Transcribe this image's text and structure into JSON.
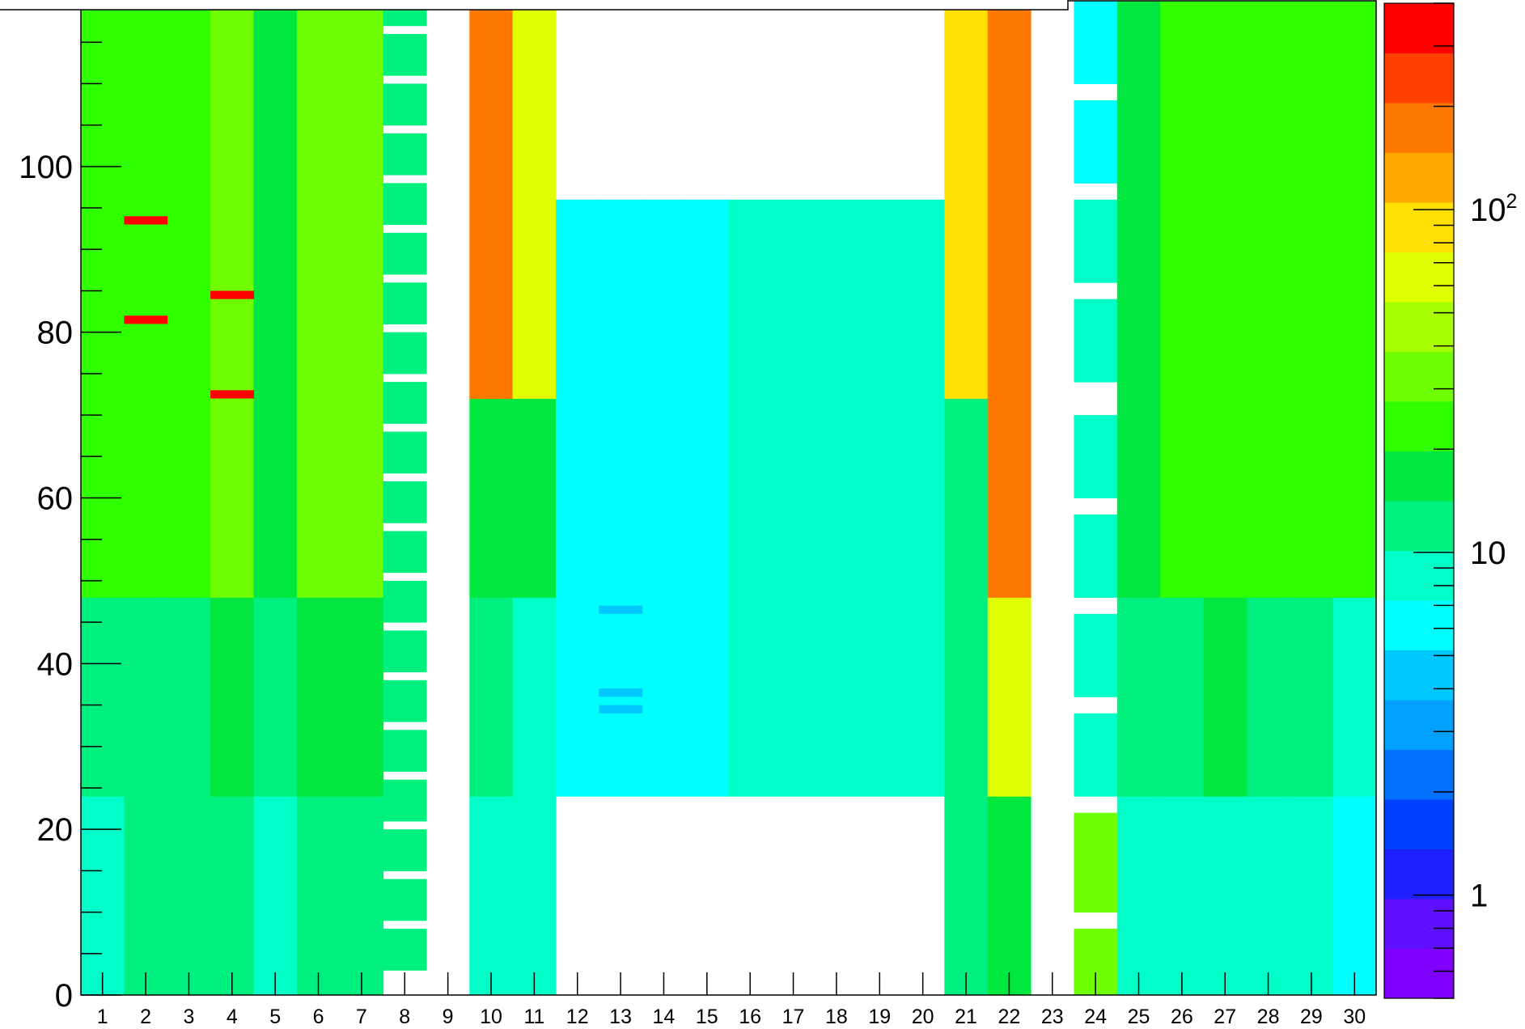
{
  "chart_data": {
    "type": "heatmap",
    "title": "",
    "xlabel": "",
    "ylabel": "",
    "x_categories": [
      "1",
      "2",
      "3",
      "4",
      "5",
      "6",
      "7",
      "8",
      "9",
      "10",
      "11",
      "12",
      "13",
      "14",
      "15",
      "16",
      "17",
      "18",
      "19",
      "20",
      "21",
      "22",
      "23",
      "24",
      "25",
      "26",
      "27",
      "28",
      "29",
      "30"
    ],
    "y_range": [
      0,
      120
    ],
    "y_ticks": [
      "0",
      "20",
      "40",
      "60",
      "80",
      "100"
    ],
    "z_scale": "log",
    "z_range": [
      0.5,
      400
    ],
    "colorbar_ticks": [
      {
        "label": "1",
        "value": 1
      },
      {
        "label": "10",
        "value": 10
      },
      {
        "label": "10",
        "sup": "2",
        "value": 100
      }
    ],
    "colorbar_colors": [
      "#8000ff",
      "#6010ff",
      "#2020ff",
      "#0040ff",
      "#0070ff",
      "#00a0ff",
      "#00c8ff",
      "#00ffff",
      "#00ffc8",
      "#00f080",
      "#00e840",
      "#30ff00",
      "#70ff00",
      "#a8ff00",
      "#e0ff00",
      "#ffe000",
      "#ffa800",
      "#ff7800",
      "#ff4000",
      "#ff0000"
    ],
    "band_defaults": {
      "1": [
        {
          "y0": 0,
          "y1": 24,
          "z": 10
        },
        {
          "y0": 24,
          "y1": 48,
          "z": 13
        },
        {
          "y0": 48,
          "y1": 120,
          "z": 20
        }
      ],
      "2": [
        {
          "y0": 0,
          "y1": 24,
          "z": 11
        },
        {
          "y0": 24,
          "y1": 48,
          "z": 13
        },
        {
          "y0": 48,
          "y1": 120,
          "z": 27
        }
      ],
      "3": [
        {
          "y0": 0,
          "y1": 24,
          "z": 11
        },
        {
          "y0": 24,
          "y1": 48,
          "z": 14
        },
        {
          "y0": 48,
          "y1": 120,
          "z": 22
        }
      ],
      "4": [
        {
          "y0": 0,
          "y1": 24,
          "z": 12
        },
        {
          "y0": 24,
          "y1": 48,
          "z": 15
        },
        {
          "y0": 48,
          "y1": 120,
          "z": 30
        }
      ],
      "5": [
        {
          "y0": 0,
          "y1": 24,
          "z": 9
        },
        {
          "y0": 24,
          "y1": 48,
          "z": 12
        },
        {
          "y0": 48,
          "y1": 120,
          "z": 18
        }
      ],
      "6": [
        {
          "y0": 0,
          "y1": 24,
          "z": 13
        },
        {
          "y0": 24,
          "y1": 48,
          "z": 16
        },
        {
          "y0": 48,
          "y1": 120,
          "z": 35
        }
      ],
      "7": [
        {
          "y0": 0,
          "y1": 24,
          "z": 12
        },
        {
          "y0": 24,
          "y1": 48,
          "z": 15
        },
        {
          "y0": 48,
          "y1": 120,
          "z": 30
        }
      ],
      "8": [
        {
          "y0": 3,
          "y1": 120,
          "z": 12
        }
      ],
      "9": [],
      "10": [
        {
          "y0": 0,
          "y1": 24,
          "z": 8
        },
        {
          "y0": 24,
          "y1": 48,
          "z": 11
        },
        {
          "y0": 48,
          "y1": 72,
          "z": 17
        },
        {
          "y0": 72,
          "y1": 120,
          "z": 160
        }
      ],
      "11": [
        {
          "y0": 0,
          "y1": 24,
          "z": 9
        },
        {
          "y0": 24,
          "y1": 48,
          "z": 10
        },
        {
          "y0": 48,
          "y1": 72,
          "z": 18
        },
        {
          "y0": 72,
          "y1": 120,
          "z": 70
        }
      ],
      "12": [
        {
          "y0": 24,
          "y1": 96,
          "z": 6
        }
      ],
      "13": [
        {
          "y0": 24,
          "y1": 96,
          "z": 6.5
        }
      ],
      "14": [
        {
          "y0": 24,
          "y1": 96,
          "z": 7
        }
      ],
      "15": [
        {
          "y0": 24,
          "y1": 96,
          "z": 6.5
        }
      ],
      "16": [
        {
          "y0": 24,
          "y1": 96,
          "z": 8
        }
      ],
      "17": [
        {
          "y0": 24,
          "y1": 96,
          "z": 9
        }
      ],
      "18": [
        {
          "y0": 24,
          "y1": 96,
          "z": 8
        }
      ],
      "19": [
        {
          "y0": 24,
          "y1": 96,
          "z": 9
        }
      ],
      "20": [
        {
          "y0": 24,
          "y1": 96,
          "z": 8
        }
      ],
      "21": [
        {
          "y0": 0,
          "y1": 24,
          "z": 11
        },
        {
          "y0": 24,
          "y1": 72,
          "z": 13
        },
        {
          "y0": 72,
          "y1": 120,
          "z": 80
        }
      ],
      "22": [
        {
          "y0": 0,
          "y1": 24,
          "z": 15
        },
        {
          "y0": 24,
          "y1": 48,
          "z": 70
        },
        {
          "y0": 48,
          "y1": 120,
          "z": 180
        }
      ],
      "23": [],
      "24": [
        {
          "y0": 0,
          "y1": 24,
          "z": 30
        },
        {
          "y0": 24,
          "y1": 96,
          "z": 10
        },
        {
          "y0": 96,
          "y1": 120,
          "z": 7
        }
      ],
      "25": [
        {
          "y0": 0,
          "y1": 24,
          "z": 8
        },
        {
          "y0": 24,
          "y1": 48,
          "z": 11
        },
        {
          "y0": 48,
          "y1": 120,
          "z": 16
        }
      ],
      "26": [
        {
          "y0": 0,
          "y1": 24,
          "z": 9
        },
        {
          "y0": 24,
          "y1": 48,
          "z": 13
        },
        {
          "y0": 48,
          "y1": 120,
          "z": 22
        }
      ],
      "27": [
        {
          "y0": 0,
          "y1": 24,
          "z": 10
        },
        {
          "y0": 24,
          "y1": 48,
          "z": 15
        },
        {
          "y0": 48,
          "y1": 120,
          "z": 26
        }
      ],
      "28": [
        {
          "y0": 0,
          "y1": 24,
          "z": 9
        },
        {
          "y0": 24,
          "y1": 48,
          "z": 13
        },
        {
          "y0": 48,
          "y1": 120,
          "z": 22
        }
      ],
      "29": [
        {
          "y0": 0,
          "y1": 24,
          "z": 9
        },
        {
          "y0": 24,
          "y1": 48,
          "z": 12
        },
        {
          "y0": 48,
          "y1": 120,
          "z": 24
        }
      ],
      "30": [
        {
          "y0": 0,
          "y1": 24,
          "z": 7
        },
        {
          "y0": 24,
          "y1": 48,
          "z": 9
        },
        {
          "y0": 48,
          "y1": 120,
          "z": 20
        }
      ]
    },
    "empty_bins": {
      "8": [
        [
          2,
          3
        ],
        [
          8,
          9
        ],
        [
          14,
          15
        ],
        [
          20,
          21
        ],
        [
          26,
          27
        ],
        [
          32,
          33
        ],
        [
          38,
          39
        ],
        [
          44,
          45
        ],
        [
          50,
          51
        ],
        [
          56,
          57
        ],
        [
          62,
          63
        ],
        [
          68,
          69
        ],
        [
          74,
          75
        ],
        [
          80,
          81
        ],
        [
          86,
          87
        ],
        [
          92,
          93
        ],
        [
          98,
          99
        ],
        [
          104,
          105
        ],
        [
          110,
          111
        ],
        [
          116,
          117
        ]
      ],
      "24": [
        [
          8,
          10
        ],
        [
          22,
          24
        ],
        [
          34,
          36
        ],
        [
          46,
          48
        ],
        [
          58,
          60
        ],
        [
          70,
          74
        ],
        [
          84,
          86
        ],
        [
          96,
          98
        ],
        [
          108,
          110
        ]
      ]
    },
    "hot_cells": [
      {
        "x": "2",
        "y0": 93,
        "y1": 94,
        "z": 400
      },
      {
        "x": "2",
        "y0": 81,
        "y1": 82,
        "z": 400
      },
      {
        "x": "4",
        "y0": 84,
        "y1": 85,
        "z": 400
      },
      {
        "x": "4",
        "y0": 72,
        "y1": 73,
        "z": 400
      },
      {
        "x": "13",
        "y0": 46,
        "y1": 47,
        "z": 4
      },
      {
        "x": "13",
        "y0": 36,
        "y1": 37,
        "z": 4
      },
      {
        "x": "13",
        "y0": 34,
        "y1": 35,
        "z": 4
      }
    ]
  }
}
